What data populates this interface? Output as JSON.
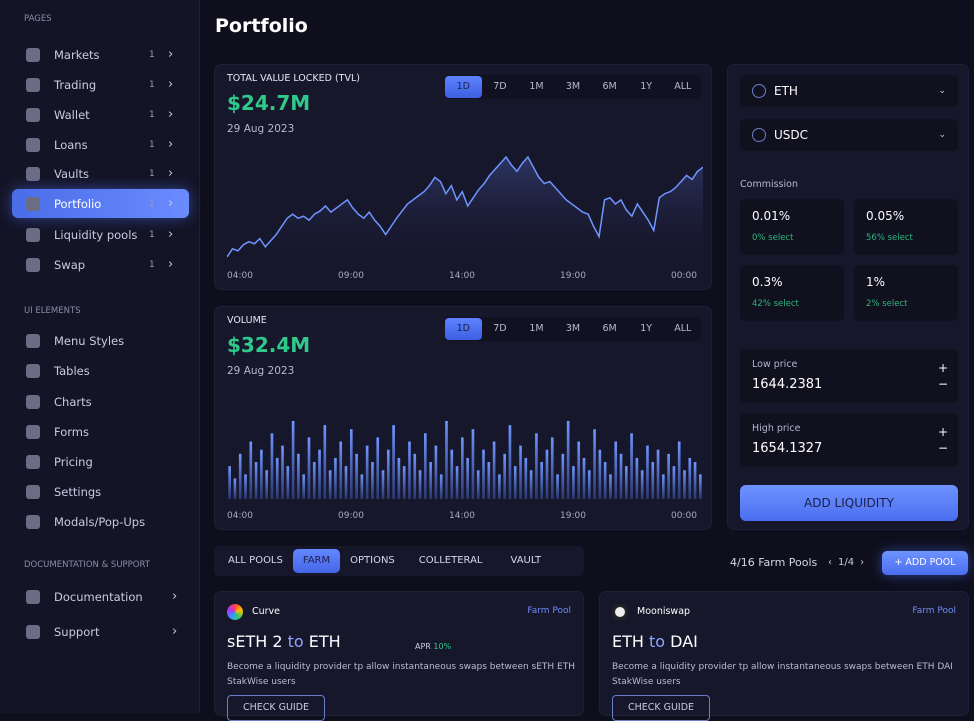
{
  "sidebar": {
    "pages_heading": "PAGES",
    "pages": [
      {
        "label": "Markets",
        "count": "1",
        "icon": "pie-chart-icon"
      },
      {
        "label": "Trading",
        "count": "1",
        "icon": "bar-chart-icon"
      },
      {
        "label": "Wallet",
        "count": "1",
        "icon": "wallet-icon"
      },
      {
        "label": "Loans",
        "count": "1",
        "icon": "hand-coin-icon"
      },
      {
        "label": "Vaults",
        "count": "1",
        "icon": "shield-icon"
      },
      {
        "label": "Portfolio",
        "count": "1",
        "icon": "briefcase-icon",
        "active": true
      },
      {
        "label": "Liquidity pools",
        "count": "1",
        "icon": "presentation-icon"
      },
      {
        "label": "Swap",
        "count": "1",
        "icon": "swap-icon"
      }
    ],
    "ui_heading": "UI ELEMENTS",
    "ui": [
      {
        "label": "Menu Styles",
        "icon": "menu-icon"
      },
      {
        "label": "Tables",
        "icon": "table-icon"
      },
      {
        "label": "Charts",
        "icon": "chart-icon"
      },
      {
        "label": "Forms",
        "icon": "form-icon"
      },
      {
        "label": "Pricing",
        "icon": "price-tag-icon"
      },
      {
        "label": "Settings",
        "icon": "gear-icon"
      },
      {
        "label": "Modals/Pop-Ups",
        "icon": "modal-icon"
      }
    ],
    "docs_heading": "DOCUMENTATION & SUPPORT",
    "docs": [
      {
        "label": "Documentation",
        "icon": "document-icon"
      },
      {
        "label": "Support",
        "icon": "chat-icon"
      }
    ]
  },
  "page_title": "Portfolio",
  "ranges": [
    "1D",
    "7D",
    "1M",
    "3M",
    "6M",
    "1Y",
    "ALL"
  ],
  "tvl": {
    "title": "TOTAL VALUE LOCKED (TVL)",
    "value": "$24.7M",
    "date": "29 Aug 2023"
  },
  "volume": {
    "title": "VOLUME",
    "value": "$32.4M",
    "date": "29 Aug 2023"
  },
  "chart_data": [
    {
      "type": "area",
      "x_ticks": [
        "04:00",
        "09:00",
        "14:00",
        "19:00",
        "00:00"
      ],
      "grid": false,
      "color": "#6f95ff",
      "values": [
        0,
        8,
        6,
        12,
        15,
        13,
        18,
        10,
        16,
        22,
        30,
        38,
        42,
        38,
        40,
        36,
        42,
        45,
        50,
        44,
        48,
        52,
        56,
        48,
        42,
        38,
        44,
        36,
        30,
        22,
        30,
        38,
        45,
        52,
        56,
        60,
        64,
        70,
        78,
        74,
        62,
        70,
        56,
        64,
        50,
        58,
        66,
        72,
        80,
        86,
        92,
        98,
        90,
        84,
        92,
        98,
        88,
        78,
        72,
        74,
        68,
        62,
        56,
        52,
        48,
        44,
        42,
        30,
        20,
        56,
        58,
        52,
        56,
        46,
        40,
        52,
        44,
        36,
        26,
        58,
        62,
        64,
        68,
        74,
        80,
        76,
        84,
        88
      ]
    },
    {
      "type": "bar",
      "x_ticks": [
        "04:00",
        "09:00",
        "14:00",
        "19:00",
        "00:00"
      ],
      "grid": false,
      "color": "#6f95ff",
      "values": [
        40,
        25,
        55,
        30,
        70,
        45,
        60,
        35,
        80,
        50,
        65,
        40,
        95,
        55,
        30,
        75,
        45,
        60,
        90,
        35,
        50,
        70,
        40,
        85,
        55,
        30,
        65,
        45,
        75,
        35,
        60,
        90,
        50,
        40,
        70,
        55,
        35,
        80,
        45,
        65,
        30,
        95,
        60,
        40,
        75,
        50,
        85,
        35,
        60,
        45,
        70,
        30,
        55,
        90,
        40,
        65,
        50,
        35,
        80,
        45,
        60,
        75,
        30,
        55,
        95,
        40,
        70,
        50,
        35,
        85,
        60,
        45,
        30,
        70,
        55,
        40,
        80,
        50,
        35,
        65,
        45,
        60,
        30,
        55,
        40,
        70,
        35,
        50,
        45,
        30
      ]
    }
  ],
  "right_panel": {
    "token_a": "ETH",
    "token_b": "USDC",
    "commission_label": "Commission",
    "fees": [
      {
        "value": "0.01%",
        "select": "0% select"
      },
      {
        "value": "0.05%",
        "select": "56% select"
      },
      {
        "value": "0.3%",
        "select": "42% select"
      },
      {
        "value": "1%",
        "select": "2% select"
      }
    ],
    "low_label": "Low price",
    "low_value": "1644.2381",
    "high_label": "High price",
    "high_value": "1654.1327",
    "plus": "+",
    "minus": "−",
    "add_liquidity": "ADD LIQUIDITY"
  },
  "pool_tabs": [
    "ALL POOLS",
    "FARM",
    "OPTIONS",
    "COLLETERAL",
    "VAULT"
  ],
  "pools_count": "4/16 Farm Pools",
  "pager": {
    "prev": "‹",
    "page": "1/4",
    "next": "›"
  },
  "add_pool": "+ ADD POOL",
  "pools": [
    {
      "name": "Curve",
      "tag": "Farm Pool",
      "from": "sETH 2",
      "to_word": "to",
      "to": "ETH",
      "apr_label": "APR",
      "apr": "10%",
      "desc": "Become a liquidity provider tp allow instantaneous swaps between sETH ETH StakWise users",
      "guide": "CHECK GUIDE"
    },
    {
      "name": "Mooniswap",
      "tag": "Farm Pool",
      "from": "ETH",
      "to_word": "to",
      "to": "DAI",
      "desc": "Become a liquidity provider tp allow instantaneous swaps between ETH DAI StakWise users",
      "guide": "CHECK GUIDE"
    }
  ],
  "colors": {
    "accent": "#5a7ef8",
    "positive": "#2fc98a",
    "background": "#0e0e1c",
    "card": "#17172c"
  }
}
